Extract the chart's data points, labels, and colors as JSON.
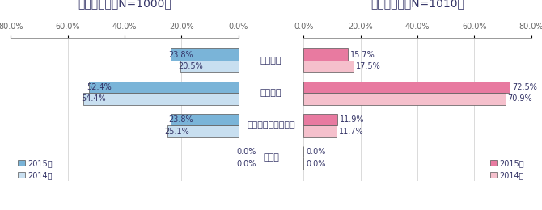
{
  "title_left": "日本世論　（N=1000）",
  "title_right": "韓国世論　（N=1010）",
  "categories": [
    "良い印象",
    "悪い印象",
    "どちらともいえない",
    "無回答"
  ],
  "japan_2015": [
    23.8,
    52.4,
    23.8,
    0.0
  ],
  "japan_2014": [
    20.5,
    54.4,
    25.1,
    0.0
  ],
  "korea_2015": [
    15.7,
    72.5,
    11.9,
    0.0
  ],
  "korea_2014": [
    17.5,
    70.9,
    11.7,
    0.0
  ],
  "japan_bar_color_2015": "#7ab4d8",
  "japan_bar_color_2014": "#c8dff0",
  "korea_bar_color_2015": "#e87aa0",
  "korea_bar_color_2014": "#f5c0cc",
  "bar_edge_color": "#555555",
  "title_color": "#333366",
  "label_color": "#333366",
  "axis_color": "#666666",
  "background_color": "#ffffff",
  "xlim_japan": 80.0,
  "xlim_korea": 80.0
}
